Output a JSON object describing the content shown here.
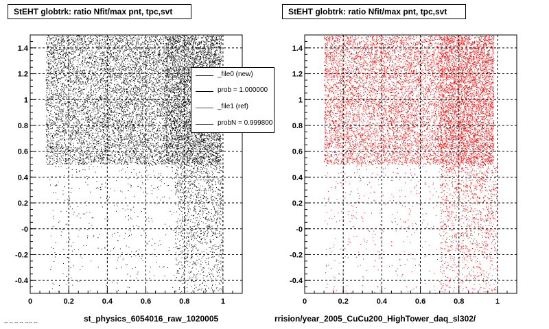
{
  "footnote": "-- -- -- -- ---- --",
  "legend": {
    "entries": [
      {
        "label": "_file0 (new)",
        "color": "#000000"
      },
      {
        "label": "prob = 1.000000",
        "color": "#000000"
      },
      {
        "label": "_file1 (ref)",
        "color": "#ff0000"
      },
      {
        "label": "probN = 0.999800",
        "color": "#ff0000"
      }
    ]
  },
  "chart_data": [
    {
      "type": "scatter",
      "title": "StEHT globtrk: ratio Nfit/max pnt, tpc,svt",
      "xlabel": "st_physics_6054016_raw_1020005",
      "ylabel": "",
      "xlim": [
        0,
        1.1
      ],
      "ylim": [
        -0.5,
        1.5
      ],
      "xticks": [
        "0",
        "0.2",
        "0.4",
        "0.6",
        "0.8",
        "1"
      ],
      "yticks": [
        "-0.4",
        "-0.2",
        "-0",
        "0.2",
        "0.4",
        "0.6",
        "0.8",
        "1",
        "1.2",
        "1.4"
      ],
      "grid": true,
      "legend_position": "top-right",
      "color": "#000000",
      "regions": [
        {
          "x": [
            0.08,
            0.4
          ],
          "y": [
            0.5,
            1.5
          ],
          "density": "high"
        },
        {
          "x": [
            0.4,
            0.7
          ],
          "y": [
            0.5,
            1.5
          ],
          "density": "high"
        },
        {
          "x": [
            0.7,
            0.99
          ],
          "y": [
            0.5,
            1.5
          ],
          "density": "very high"
        },
        {
          "x": [
            0.1,
            1.0
          ],
          "y": [
            -0.5,
            0.5
          ],
          "density": "low"
        },
        {
          "x": [
            0.75,
            1.0
          ],
          "y": [
            -0.5,
            0.5
          ],
          "density": "medium"
        }
      ]
    },
    {
      "type": "scatter",
      "title": "StEHT globtrk: ratio Nfit/max pnt, tpc,svt",
      "xlabel": "rrision/year_2005_CuCu200_HighTower_daq_sl302/",
      "ylabel": "",
      "xlim": [
        0,
        1.1
      ],
      "ylim": [
        -0.5,
        1.5
      ],
      "xticks": [
        "0",
        "0.2",
        "0.4",
        "0.6",
        "0.8",
        "1"
      ],
      "yticks": [
        "-0.4",
        "-0.2",
        "-0",
        "0.2",
        "0.4",
        "0.6",
        "0.8",
        "1",
        "1.2",
        "1.4"
      ],
      "grid": true,
      "color": "#ff0000",
      "regions": [
        {
          "x": [
            0.1,
            0.4
          ],
          "y": [
            0.5,
            1.5
          ],
          "density": "high"
        },
        {
          "x": [
            0.4,
            0.7
          ],
          "y": [
            0.5,
            1.5
          ],
          "density": "high"
        },
        {
          "x": [
            0.7,
            0.98
          ],
          "y": [
            0.5,
            1.5
          ],
          "density": "very high"
        },
        {
          "x": [
            0.1,
            1.0
          ],
          "y": [
            -0.5,
            0.5
          ],
          "density": "low"
        },
        {
          "x": [
            0.7,
            1.0
          ],
          "y": [
            -0.5,
            0.5
          ],
          "density": "medium"
        }
      ]
    }
  ]
}
